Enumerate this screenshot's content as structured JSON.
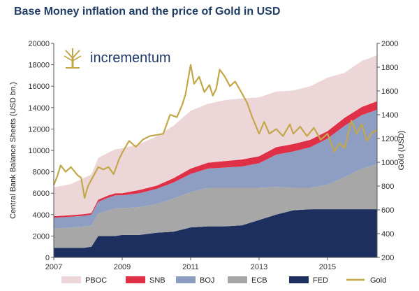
{
  "chart_data": {
    "type": "area",
    "title": "Base Money inflation and the price of Gold in USD",
    "brand": "incrementum",
    "ylabel": "Central Bank Balance Sheets (USD bn.)",
    "y2label": "Gold (USD)",
    "xlim": [
      2007.0,
      2016.45
    ],
    "ylim": [
      0,
      20000
    ],
    "y2lim": [
      200,
      2000
    ],
    "xticks": [
      2007,
      2009,
      2011,
      2013,
      2015
    ],
    "yticks": [
      0,
      2000,
      4000,
      6000,
      8000,
      10000,
      12000,
      14000,
      16000,
      18000,
      20000
    ],
    "y2ticks": [
      200,
      400,
      600,
      800,
      1000,
      1200,
      1400,
      1600,
      1800,
      2000
    ],
    "x": [
      2007.0,
      2007.5,
      2007.9,
      2008.1,
      2008.3,
      2008.6,
      2008.8,
      2009.0,
      2009.5,
      2010.0,
      2010.5,
      2011.0,
      2011.5,
      2012.0,
      2012.5,
      2013.0,
      2013.5,
      2014.0,
      2014.5,
      2015.0,
      2015.5,
      2016.0,
      2016.45
    ],
    "stack_order": [
      "FED",
      "ECB",
      "BOJ",
      "SNB",
      "PBOC"
    ],
    "series": [
      {
        "name": "FED",
        "color": "#1c2f5e",
        "values": [
          900,
          900,
          900,
          1000,
          2000,
          2000,
          2000,
          2100,
          2100,
          2300,
          2400,
          2800,
          2900,
          2900,
          3000,
          3500,
          4000,
          4400,
          4500,
          4500,
          4500,
          4500,
          4500
        ]
      },
      {
        "name": "ECB",
        "color": "#a7a7a7",
        "values": [
          1800,
          1900,
          2000,
          2000,
          2100,
          2400,
          2600,
          2500,
          2600,
          2700,
          3100,
          3300,
          3600,
          3600,
          3500,
          3000,
          2600,
          2100,
          2000,
          2300,
          3000,
          3800,
          4200
        ]
      },
      {
        "name": "BOJ",
        "color": "#8e9dc2",
        "values": [
          1000,
          1000,
          1000,
          1000,
          1100,
          1200,
          1200,
          1200,
          1300,
          1400,
          1500,
          1700,
          1800,
          1900,
          2000,
          2300,
          3000,
          3400,
          3800,
          4300,
          4800,
          5000,
          5100
        ]
      },
      {
        "name": "SNB",
        "color": "#e03048",
        "values": [
          150,
          150,
          150,
          150,
          200,
          200,
          200,
          200,
          300,
          300,
          400,
          500,
          550,
          600,
          650,
          650,
          700,
          700,
          700,
          700,
          750,
          750,
          800
        ]
      },
      {
        "name": "PBOC",
        "color": "#ecd6d8",
        "values": [
          2700,
          2900,
          3400,
          3600,
          3900,
          4000,
          4100,
          4200,
          4300,
          4600,
          4900,
          5400,
          5500,
          5700,
          5700,
          5500,
          5200,
          5000,
          5000,
          5000,
          4200,
          4300,
          4300
        ]
      }
    ],
    "gold": {
      "name": "Gold",
      "color": "#c3a84a",
      "x": [
        2007.0,
        2007.1,
        2007.2,
        2007.35,
        2007.5,
        2007.7,
        2007.8,
        2007.9,
        2008.0,
        2008.15,
        2008.3,
        2008.45,
        2008.6,
        2008.75,
        2008.9,
        2009.0,
        2009.2,
        2009.4,
        2009.6,
        2009.8,
        2010.0,
        2010.2,
        2010.4,
        2010.6,
        2010.75,
        2010.85,
        2011.0,
        2011.1,
        2011.25,
        2011.4,
        2011.55,
        2011.65,
        2011.75,
        2011.85,
        2012.0,
        2012.15,
        2012.3,
        2012.5,
        2012.65,
        2012.8,
        2013.0,
        2013.15,
        2013.3,
        2013.5,
        2013.7,
        2013.9,
        2014.0,
        2014.2,
        2014.4,
        2014.6,
        2014.8,
        2015.0,
        2015.2,
        2015.35,
        2015.5,
        2015.7,
        2015.85,
        2016.0,
        2016.15,
        2016.3,
        2016.45
      ],
      "values": [
        810,
        880,
        975,
        920,
        960,
        890,
        870,
        700,
        800,
        880,
        960,
        940,
        960,
        900,
        1020,
        1080,
        1180,
        1130,
        1190,
        1220,
        1230,
        1240,
        1400,
        1380,
        1480,
        1570,
        1820,
        1660,
        1720,
        1590,
        1650,
        1560,
        1620,
        1780,
        1720,
        1640,
        1680,
        1580,
        1500,
        1380,
        1240,
        1340,
        1240,
        1280,
        1220,
        1320,
        1240,
        1300,
        1220,
        1290,
        1190,
        1240,
        1090,
        1160,
        1120,
        1350,
        1240,
        1320,
        1180,
        1250,
        1270
      ]
    },
    "legend": [
      "PBOC",
      "SNB",
      "BOJ",
      "ECB",
      "FED",
      "Gold"
    ],
    "legend_position": "bottom"
  }
}
